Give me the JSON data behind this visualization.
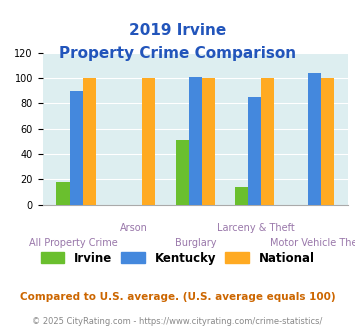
{
  "title_line1": "2019 Irvine",
  "title_line2": "Property Crime Comparison",
  "categories": [
    "All Property Crime",
    "Arson",
    "Burglary",
    "Larceny & Theft",
    "Motor Vehicle Theft"
  ],
  "cat_labels_row1": [
    "",
    "Arson",
    "",
    "Larceny & Theft",
    ""
  ],
  "cat_labels_row2": [
    "All Property Crime",
    "",
    "Burglary",
    "",
    "Motor Vehicle Theft"
  ],
  "irvine_values": [
    18,
    0,
    51,
    14,
    0
  ],
  "kentucky_values": [
    90,
    0,
    101,
    85,
    104
  ],
  "national_values": [
    100,
    100,
    100,
    100,
    100
  ],
  "irvine_color": "#6abf2e",
  "kentucky_color": "#4488dd",
  "national_color": "#ffaa22",
  "ylim": [
    0,
    120
  ],
  "yticks": [
    0,
    20,
    40,
    60,
    80,
    100,
    120
  ],
  "background_color": "#ddeef0",
  "legend_labels": [
    "Irvine",
    "Kentucky",
    "National"
  ],
  "footnote1": "Compared to U.S. average. (U.S. average equals 100)",
  "footnote2": "© 2025 CityRating.com - https://www.cityrating.com/crime-statistics/",
  "title_color": "#2255bb",
  "footnote1_color": "#cc6600",
  "footnote2_color": "#888888",
  "xlabel_color": "#9977aa",
  "footnote2_color2": "#4488dd"
}
